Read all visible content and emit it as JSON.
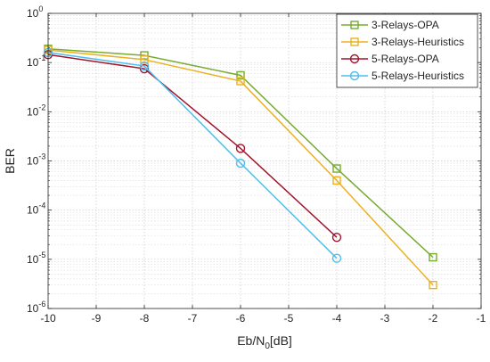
{
  "chart_data": {
    "type": "line",
    "xlabel_main": "Eb/N",
    "xlabel_sub": "0",
    "xlabel_tail": "[dB]",
    "ylabel": "BER",
    "x_scale": "linear",
    "y_scale": "log",
    "xlim": [
      -10,
      -1
    ],
    "ylim": [
      1e-06,
      1
    ],
    "x_ticks": [
      -10,
      -9,
      -8,
      -7,
      -6,
      -5,
      -4,
      -3,
      -2,
      -1
    ],
    "x_tick_labels": [
      "-10",
      "-9",
      "-8",
      "-7",
      "-6",
      "-5",
      "-4",
      "-3",
      "-2",
      "-1"
    ],
    "y_tick_exponents": [
      0,
      -1,
      -2,
      -3,
      -4,
      -5,
      -6
    ],
    "y_tick_base": "10",
    "y_tick_exponent_labels": [
      "0",
      "-1",
      "-2",
      "-3",
      "-4",
      "-5",
      "-6"
    ],
    "grid": true,
    "minor_grid": true,
    "legend_position": "top-right",
    "series": [
      {
        "name": "3-Relays-OPA",
        "color": "#77ac30",
        "marker": "square",
        "x": [
          -10,
          -8,
          -6,
          -4,
          -2
        ],
        "y": [
          0.19,
          0.14,
          0.055,
          0.0007,
          1.1e-05
        ]
      },
      {
        "name": "3-Relays-Heuristics",
        "color": "#edb120",
        "marker": "square",
        "x": [
          -10,
          -8,
          -6,
          -4,
          -2
        ],
        "y": [
          0.18,
          0.115,
          0.042,
          0.0004,
          3e-06
        ]
      },
      {
        "name": "5-Relays-OPA",
        "color": "#a2142f",
        "marker": "circle",
        "x": [
          -10,
          -8,
          -6,
          -4
        ],
        "y": [
          0.145,
          0.075,
          0.0018,
          2.8e-05
        ]
      },
      {
        "name": "5-Relays-Heuristics",
        "color": "#4dbeee",
        "marker": "circle",
        "x": [
          -10,
          -8,
          -6,
          -4
        ],
        "y": [
          0.16,
          0.085,
          0.0009,
          1.05e-05
        ]
      }
    ]
  }
}
